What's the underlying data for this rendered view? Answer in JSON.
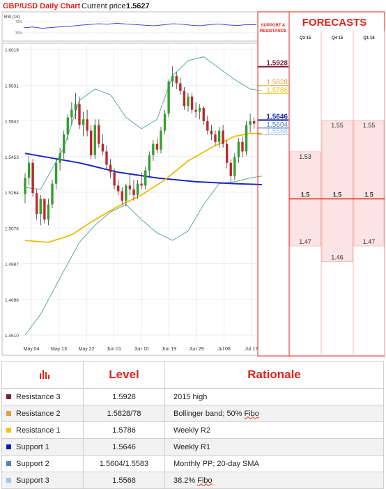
{
  "header": {
    "title": "GBP/USD Daily Chart",
    "price_label": "Current price:",
    "price_value": "1.5627"
  },
  "rsi": {
    "label": "RSI (14)",
    "ticks": [
      "70%",
      "30%"
    ]
  },
  "colors": {
    "up": "#33a02c",
    "down": "#c0272d",
    "sma": "#f5b800",
    "trend": "#1a27c4",
    "bollinger": "#5aa9a9",
    "resistance3": "#7b1f3a",
    "resistance2": "#d9a441",
    "resistance1": "#f2c218",
    "support1": "#0b1fa6",
    "support2": "#5b7fbf",
    "support3": "#9ec7e0",
    "accent": "#e2231a"
  },
  "chart_data": [
    {
      "type": "candlestick",
      "title": "GBP/USD Daily Chart",
      "ylim": [
        1.451,
        1.6019
      ],
      "y_ticks": [
        "1.6019",
        "1.5831",
        "1.5642",
        "1.5453",
        "1.5264",
        "1.5076",
        "1.4887",
        "1.4698",
        "1.4510"
      ],
      "x_ticks": [
        "May 04",
        "May 13",
        "May 22",
        "Jun 01",
        "Jun 10",
        "Jun 19",
        "Jun 29",
        "Jul 08",
        "Jul 17"
      ],
      "candles": [
        {
          "o": 1.5255,
          "h": 1.5365,
          "l": 1.5205,
          "c": 1.534
        },
        {
          "o": 1.534,
          "h": 1.5455,
          "l": 1.53,
          "c": 1.542
        },
        {
          "o": 1.542,
          "h": 1.544,
          "l": 1.524,
          "c": 1.526
        },
        {
          "o": 1.526,
          "h": 1.528,
          "l": 1.512,
          "c": 1.515
        },
        {
          "o": 1.515,
          "h": 1.525,
          "l": 1.509,
          "c": 1.523
        },
        {
          "o": 1.523,
          "h": 1.522,
          "l": 1.51,
          "c": 1.512
        },
        {
          "o": 1.512,
          "h": 1.523,
          "l": 1.509,
          "c": 1.52
        },
        {
          "o": 1.52,
          "h": 1.533,
          "l": 1.518,
          "c": 1.531
        },
        {
          "o": 1.531,
          "h": 1.544,
          "l": 1.528,
          "c": 1.542
        },
        {
          "o": 1.542,
          "h": 1.55,
          "l": 1.538,
          "c": 1.547
        },
        {
          "o": 1.547,
          "h": 1.559,
          "l": 1.544,
          "c": 1.557
        },
        {
          "o": 1.557,
          "h": 1.568,
          "l": 1.554,
          "c": 1.566
        },
        {
          "o": 1.566,
          "h": 1.574,
          "l": 1.562,
          "c": 1.57
        },
        {
          "o": 1.57,
          "h": 1.579,
          "l": 1.565,
          "c": 1.573
        },
        {
          "o": 1.573,
          "h": 1.577,
          "l": 1.56,
          "c": 1.562
        },
        {
          "o": 1.562,
          "h": 1.569,
          "l": 1.556,
          "c": 1.565
        },
        {
          "o": 1.565,
          "h": 1.57,
          "l": 1.556,
          "c": 1.559
        },
        {
          "o": 1.559,
          "h": 1.562,
          "l": 1.544,
          "c": 1.546
        },
        {
          "o": 1.546,
          "h": 1.565,
          "l": 1.544,
          "c": 1.562
        },
        {
          "o": 1.562,
          "h": 1.565,
          "l": 1.55,
          "c": 1.552
        },
        {
          "o": 1.552,
          "h": 1.557,
          "l": 1.546,
          "c": 1.548
        },
        {
          "o": 1.548,
          "h": 1.551,
          "l": 1.539,
          "c": 1.541
        },
        {
          "o": 1.541,
          "h": 1.544,
          "l": 1.534,
          "c": 1.537
        },
        {
          "o": 1.537,
          "h": 1.539,
          "l": 1.528,
          "c": 1.53
        },
        {
          "o": 1.53,
          "h": 1.533,
          "l": 1.525,
          "c": 1.527
        },
        {
          "o": 1.527,
          "h": 1.529,
          "l": 1.52,
          "c": 1.522
        },
        {
          "o": 1.522,
          "h": 1.531,
          "l": 1.519,
          "c": 1.53
        },
        {
          "o": 1.53,
          "h": 1.536,
          "l": 1.525,
          "c": 1.528
        },
        {
          "o": 1.528,
          "h": 1.533,
          "l": 1.522,
          "c": 1.525
        },
        {
          "o": 1.525,
          "h": 1.533,
          "l": 1.523,
          "c": 1.531
        },
        {
          "o": 1.531,
          "h": 1.537,
          "l": 1.528,
          "c": 1.53
        },
        {
          "o": 1.53,
          "h": 1.54,
          "l": 1.528,
          "c": 1.538
        },
        {
          "o": 1.538,
          "h": 1.548,
          "l": 1.535,
          "c": 1.546
        },
        {
          "o": 1.546,
          "h": 1.554,
          "l": 1.543,
          "c": 1.552
        },
        {
          "o": 1.552,
          "h": 1.555,
          "l": 1.547,
          "c": 1.549
        },
        {
          "o": 1.549,
          "h": 1.561,
          "l": 1.547,
          "c": 1.559
        },
        {
          "o": 1.559,
          "h": 1.57,
          "l": 1.557,
          "c": 1.568
        },
        {
          "o": 1.568,
          "h": 1.586,
          "l": 1.566,
          "c": 1.585
        },
        {
          "o": 1.585,
          "h": 1.593,
          "l": 1.582,
          "c": 1.588
        },
        {
          "o": 1.588,
          "h": 1.59,
          "l": 1.581,
          "c": 1.584
        },
        {
          "o": 1.584,
          "h": 1.587,
          "l": 1.578,
          "c": 1.58
        },
        {
          "o": 1.58,
          "h": 1.582,
          "l": 1.57,
          "c": 1.572
        },
        {
          "o": 1.572,
          "h": 1.579,
          "l": 1.569,
          "c": 1.577
        },
        {
          "o": 1.577,
          "h": 1.579,
          "l": 1.568,
          "c": 1.57
        },
        {
          "o": 1.57,
          "h": 1.574,
          "l": 1.566,
          "c": 1.569
        },
        {
          "o": 1.569,
          "h": 1.573,
          "l": 1.565,
          "c": 1.571
        },
        {
          "o": 1.571,
          "h": 1.572,
          "l": 1.562,
          "c": 1.564
        },
        {
          "o": 1.564,
          "h": 1.567,
          "l": 1.557,
          "c": 1.559
        },
        {
          "o": 1.559,
          "h": 1.562,
          "l": 1.554,
          "c": 1.557
        },
        {
          "o": 1.557,
          "h": 1.559,
          "l": 1.551,
          "c": 1.553
        },
        {
          "o": 1.553,
          "h": 1.561,
          "l": 1.55,
          "c": 1.559
        },
        {
          "o": 1.559,
          "h": 1.562,
          "l": 1.55,
          "c": 1.552
        },
        {
          "o": 1.552,
          "h": 1.554,
          "l": 1.539,
          "c": 1.542
        },
        {
          "o": 1.542,
          "h": 1.544,
          "l": 1.532,
          "c": 1.535
        },
        {
          "o": 1.535,
          "h": 1.547,
          "l": 1.533,
          "c": 1.545
        },
        {
          "o": 1.545,
          "h": 1.555,
          "l": 1.542,
          "c": 1.553
        },
        {
          "o": 1.553,
          "h": 1.556,
          "l": 1.545,
          "c": 1.548
        },
        {
          "o": 1.548,
          "h": 1.564,
          "l": 1.546,
          "c": 1.562
        },
        {
          "o": 1.562,
          "h": 1.568,
          "l": 1.558,
          "c": 1.564
        },
        {
          "o": 1.564,
          "h": 1.566,
          "l": 1.56,
          "c": 1.5627
        }
      ],
      "sma_20": [
        [
          0,
          1.501
        ],
        [
          6,
          1.5
        ],
        [
          12,
          1.504
        ],
        [
          18,
          1.512
        ],
        [
          24,
          1.519
        ],
        [
          30,
          1.525
        ],
        [
          36,
          1.533
        ],
        [
          42,
          1.543
        ],
        [
          48,
          1.55
        ],
        [
          54,
          1.556
        ],
        [
          58,
          1.5575
        ],
        [
          61,
          1.5575
        ]
      ],
      "trend_line": [
        [
          0,
          1.547
        ],
        [
          14,
          1.542
        ],
        [
          24,
          1.537
        ],
        [
          34,
          1.534
        ],
        [
          44,
          1.532
        ],
        [
          54,
          1.531
        ],
        [
          61,
          1.5305
        ]
      ],
      "bollinger_upper": [
        [
          0,
          1.529
        ],
        [
          4,
          1.528
        ],
        [
          10,
          1.55
        ],
        [
          14,
          1.575
        ],
        [
          18,
          1.581
        ],
        [
          22,
          1.578
        ],
        [
          26,
          1.566
        ],
        [
          30,
          1.56
        ],
        [
          34,
          1.565
        ],
        [
          38,
          1.588
        ],
        [
          42,
          1.596
        ],
        [
          46,
          1.598
        ],
        [
          50,
          1.592
        ],
        [
          54,
          1.586
        ],
        [
          58,
          1.581
        ],
        [
          61,
          1.58
        ]
      ],
      "bollinger_lower": [
        [
          0,
          1.451
        ],
        [
          4,
          1.462
        ],
        [
          10,
          1.485
        ],
        [
          14,
          1.5
        ],
        [
          18,
          1.509
        ],
        [
          22,
          1.516
        ],
        [
          26,
          1.52
        ],
        [
          30,
          1.512
        ],
        [
          34,
          1.505
        ],
        [
          38,
          1.501
        ],
        [
          42,
          1.506
        ],
        [
          46,
          1.52
        ],
        [
          50,
          1.531
        ],
        [
          54,
          1.532
        ],
        [
          58,
          1.534
        ],
        [
          61,
          1.535
        ]
      ],
      "levels": [
        {
          "value": "1.5928",
          "y": 1.5928,
          "color": "#7b1f3a"
        },
        {
          "value": "1.5828",
          "y": 1.5828,
          "color": "#d9a441"
        },
        {
          "value": "1.5786",
          "y": 1.5786,
          "color": "#f2c218"
        },
        {
          "value": "1.5646",
          "y": 1.5646,
          "color": "#0b1fa6"
        },
        {
          "value": "1.5604",
          "y": 1.5604,
          "color": "#5b7fbf"
        },
        {
          "value": "1.5568",
          "y": 1.5568,
          "color": "#9ec7e0"
        }
      ],
      "rsi_series": [
        42,
        45,
        40,
        43,
        46,
        48,
        52,
        55,
        58,
        56,
        60,
        57,
        55,
        52,
        50,
        54,
        58,
        56,
        52,
        50,
        55,
        57,
        53,
        51,
        55,
        54
      ]
    },
    {
      "type": "bar",
      "title": "FORECASTS",
      "side_label": [
        "SUPPORT &",
        "RESISTANCE"
      ],
      "categories": [
        "Q3 15",
        "Q4 15",
        "Q1 16"
      ],
      "ylim": [
        1.4,
        1.6
      ],
      "reference_line": {
        "value": 1.5,
        "labels": [
          "1.5",
          "1.5",
          "1.5"
        ]
      },
      "series": [
        {
          "values": [
            1.53,
            1.55,
            1.55
          ],
          "labels": [
            "1.53",
            "1.55",
            "1.55"
          ]
        },
        {
          "values": [
            1.47,
            1.46,
            1.47
          ],
          "labels": [
            "1.47",
            "1.46",
            "1.47"
          ]
        }
      ]
    }
  ],
  "table": {
    "headers": {
      "level": "Level",
      "rationale": "Rationale"
    },
    "rows": [
      {
        "name": "Resistance 3",
        "level": "1.5928",
        "rationale": "2015 high",
        "swatch": "#7b1f3a"
      },
      {
        "name": "Resistance 2",
        "level": "1.5828/78",
        "rationale_pre": "Bollinger band; 50% ",
        "rationale_ul": "Fibo",
        "swatch": "#d9a441"
      },
      {
        "name": "Resistance 1",
        "level": "1.5786",
        "rationale": "Weekly R2",
        "swatch": "#f2c218"
      },
      {
        "name": "Support 1",
        "level": "1.5646",
        "rationale": "Weekly R1",
        "swatch": "#0b1fa6"
      },
      {
        "name": "Support 2",
        "level": "1.5604/1.5583",
        "rationale": "Monthly PP; 20-day SMA",
        "swatch": "#5b7fbf"
      },
      {
        "name": "Support 3",
        "level": "1.5568",
        "rationale_pre": "38.2% ",
        "rationale_ul": "Fibo",
        "swatch": "#9ec7e0"
      }
    ]
  }
}
